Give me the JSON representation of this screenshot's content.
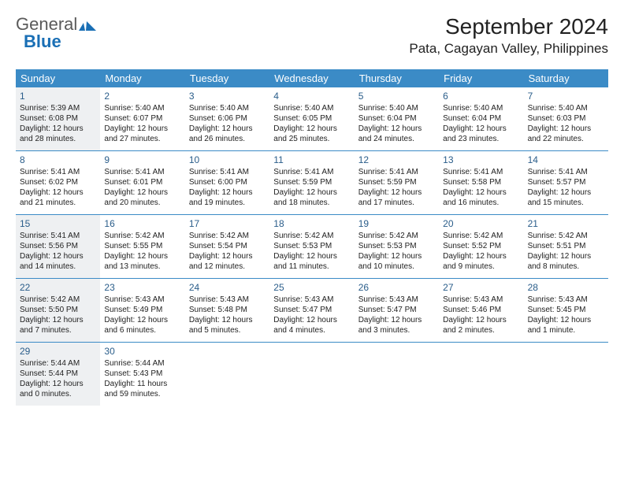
{
  "brand": {
    "part1": "General",
    "part2": "Blue"
  },
  "title": "September 2024",
  "location": "Pata, Cagayan Valley, Philippines",
  "colors": {
    "header_bg": "#3b8bc6",
    "header_text": "#ffffff",
    "daynum_color": "#2a5d8a",
    "shaded_bg": "#eef0f2",
    "logo_blue": "#1a6fb5",
    "logo_gray": "#5a5a5a",
    "border": "#3b8bc6"
  },
  "weekdays": [
    "Sunday",
    "Monday",
    "Tuesday",
    "Wednesday",
    "Thursday",
    "Friday",
    "Saturday"
  ],
  "shaded_days": [
    1,
    15,
    22,
    29
  ],
  "days": [
    {
      "n": 1,
      "sr": "5:39 AM",
      "ss": "6:08 PM",
      "dl": "12 hours and 28 minutes."
    },
    {
      "n": 2,
      "sr": "5:40 AM",
      "ss": "6:07 PM",
      "dl": "12 hours and 27 minutes."
    },
    {
      "n": 3,
      "sr": "5:40 AM",
      "ss": "6:06 PM",
      "dl": "12 hours and 26 minutes."
    },
    {
      "n": 4,
      "sr": "5:40 AM",
      "ss": "6:05 PM",
      "dl": "12 hours and 25 minutes."
    },
    {
      "n": 5,
      "sr": "5:40 AM",
      "ss": "6:04 PM",
      "dl": "12 hours and 24 minutes."
    },
    {
      "n": 6,
      "sr": "5:40 AM",
      "ss": "6:04 PM",
      "dl": "12 hours and 23 minutes."
    },
    {
      "n": 7,
      "sr": "5:40 AM",
      "ss": "6:03 PM",
      "dl": "12 hours and 22 minutes."
    },
    {
      "n": 8,
      "sr": "5:41 AM",
      "ss": "6:02 PM",
      "dl": "12 hours and 21 minutes."
    },
    {
      "n": 9,
      "sr": "5:41 AM",
      "ss": "6:01 PM",
      "dl": "12 hours and 20 minutes."
    },
    {
      "n": 10,
      "sr": "5:41 AM",
      "ss": "6:00 PM",
      "dl": "12 hours and 19 minutes."
    },
    {
      "n": 11,
      "sr": "5:41 AM",
      "ss": "5:59 PM",
      "dl": "12 hours and 18 minutes."
    },
    {
      "n": 12,
      "sr": "5:41 AM",
      "ss": "5:59 PM",
      "dl": "12 hours and 17 minutes."
    },
    {
      "n": 13,
      "sr": "5:41 AM",
      "ss": "5:58 PM",
      "dl": "12 hours and 16 minutes."
    },
    {
      "n": 14,
      "sr": "5:41 AM",
      "ss": "5:57 PM",
      "dl": "12 hours and 15 minutes."
    },
    {
      "n": 15,
      "sr": "5:41 AM",
      "ss": "5:56 PM",
      "dl": "12 hours and 14 minutes."
    },
    {
      "n": 16,
      "sr": "5:42 AM",
      "ss": "5:55 PM",
      "dl": "12 hours and 13 minutes."
    },
    {
      "n": 17,
      "sr": "5:42 AM",
      "ss": "5:54 PM",
      "dl": "12 hours and 12 minutes."
    },
    {
      "n": 18,
      "sr": "5:42 AM",
      "ss": "5:53 PM",
      "dl": "12 hours and 11 minutes."
    },
    {
      "n": 19,
      "sr": "5:42 AM",
      "ss": "5:53 PM",
      "dl": "12 hours and 10 minutes."
    },
    {
      "n": 20,
      "sr": "5:42 AM",
      "ss": "5:52 PM",
      "dl": "12 hours and 9 minutes."
    },
    {
      "n": 21,
      "sr": "5:42 AM",
      "ss": "5:51 PM",
      "dl": "12 hours and 8 minutes."
    },
    {
      "n": 22,
      "sr": "5:42 AM",
      "ss": "5:50 PM",
      "dl": "12 hours and 7 minutes."
    },
    {
      "n": 23,
      "sr": "5:43 AM",
      "ss": "5:49 PM",
      "dl": "12 hours and 6 minutes."
    },
    {
      "n": 24,
      "sr": "5:43 AM",
      "ss": "5:48 PM",
      "dl": "12 hours and 5 minutes."
    },
    {
      "n": 25,
      "sr": "5:43 AM",
      "ss": "5:47 PM",
      "dl": "12 hours and 4 minutes."
    },
    {
      "n": 26,
      "sr": "5:43 AM",
      "ss": "5:47 PM",
      "dl": "12 hours and 3 minutes."
    },
    {
      "n": 27,
      "sr": "5:43 AM",
      "ss": "5:46 PM",
      "dl": "12 hours and 2 minutes."
    },
    {
      "n": 28,
      "sr": "5:43 AM",
      "ss": "5:45 PM",
      "dl": "12 hours and 1 minute."
    },
    {
      "n": 29,
      "sr": "5:44 AM",
      "ss": "5:44 PM",
      "dl": "12 hours and 0 minutes."
    },
    {
      "n": 30,
      "sr": "5:44 AM",
      "ss": "5:43 PM",
      "dl": "11 hours and 59 minutes."
    }
  ],
  "labels": {
    "sunrise": "Sunrise:",
    "sunset": "Sunset:",
    "daylight": "Daylight:"
  }
}
